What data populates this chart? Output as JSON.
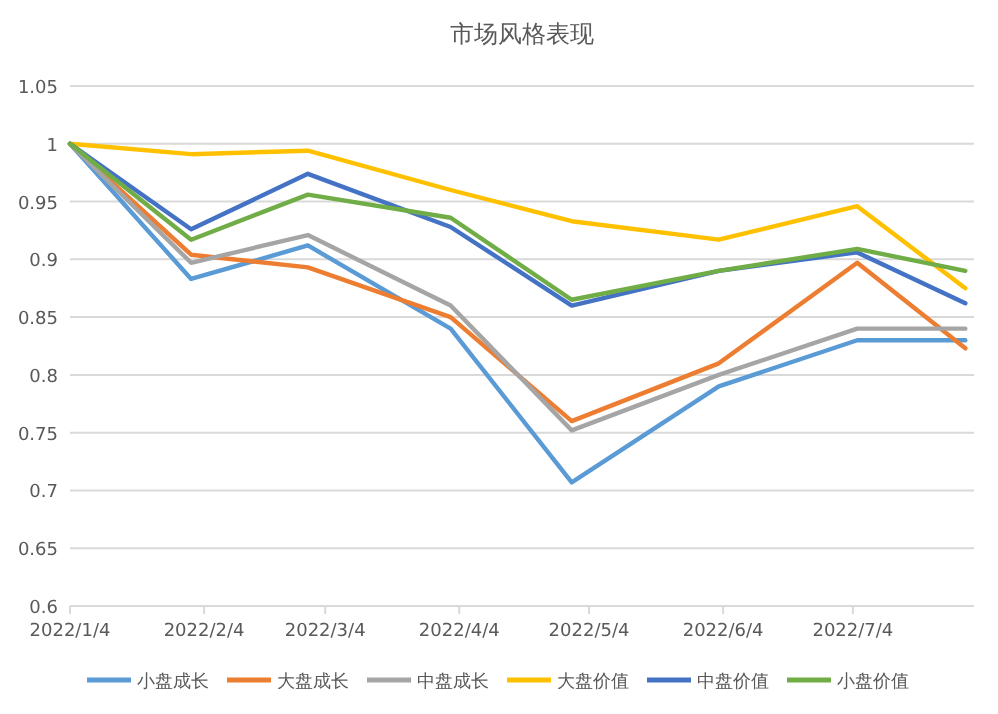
{
  "chart_data": {
    "type": "line",
    "title": "市场风格表现",
    "x": [
      "2022-01-04",
      "2022-02-01",
      "2022-02-28",
      "2022-04-02",
      "2022-04-30",
      "2022-06-03",
      "2022-07-05",
      "2022-07-30"
    ],
    "series": [
      {
        "name": "小盘成长",
        "color": "#5b9bd5",
        "values": [
          1,
          0.883,
          0.912,
          0.84,
          0.707,
          0.79,
          0.83,
          0.83
        ]
      },
      {
        "name": "大盘成长",
        "color": "#ed7d31",
        "values": [
          1,
          0.904,
          0.893,
          0.85,
          0.76,
          0.81,
          0.897,
          0.823
        ]
      },
      {
        "name": "中盘成长",
        "color": "#a5a5a5",
        "values": [
          1,
          0.897,
          0.921,
          0.86,
          0.752,
          0.8,
          0.84,
          0.84
        ]
      },
      {
        "name": "大盘价值",
        "color": "#ffc000",
        "values": [
          1,
          0.991,
          0.994,
          0.96,
          0.933,
          0.917,
          0.946,
          0.875
        ]
      },
      {
        "name": "中盘价值",
        "color": "#4472c4",
        "values": [
          1,
          0.926,
          0.974,
          0.928,
          0.86,
          0.89,
          0.906,
          0.862
        ]
      },
      {
        "name": "小盘价值",
        "color": "#70ad47",
        "values": [
          1,
          0.917,
          0.956,
          0.936,
          0.865,
          0.89,
          0.909,
          0.89
        ]
      }
    ],
    "xlim": [
      "2022-01-04",
      "2022-08-01"
    ],
    "xticks": [
      {
        "value": "2022-01-04",
        "label": "2022/1/4"
      },
      {
        "value": "2022-02-04",
        "label": "2022/2/4"
      },
      {
        "value": "2022-03-04",
        "label": "2022/3/4"
      },
      {
        "value": "2022-04-04",
        "label": "2022/4/4"
      },
      {
        "value": "2022-05-04",
        "label": "2022/5/4"
      },
      {
        "value": "2022-06-04",
        "label": "2022/6/4"
      },
      {
        "value": "2022-07-04",
        "label": "2022/7/4"
      }
    ],
    "ylim": [
      0.6,
      1.05
    ],
    "yticks": [
      0.6,
      0.65,
      0.7,
      0.75,
      0.8,
      0.85,
      0.9,
      0.95,
      1,
      1.05
    ],
    "grid": "y",
    "legend": "bottom",
    "marker": "none",
    "line_style": "solid"
  }
}
